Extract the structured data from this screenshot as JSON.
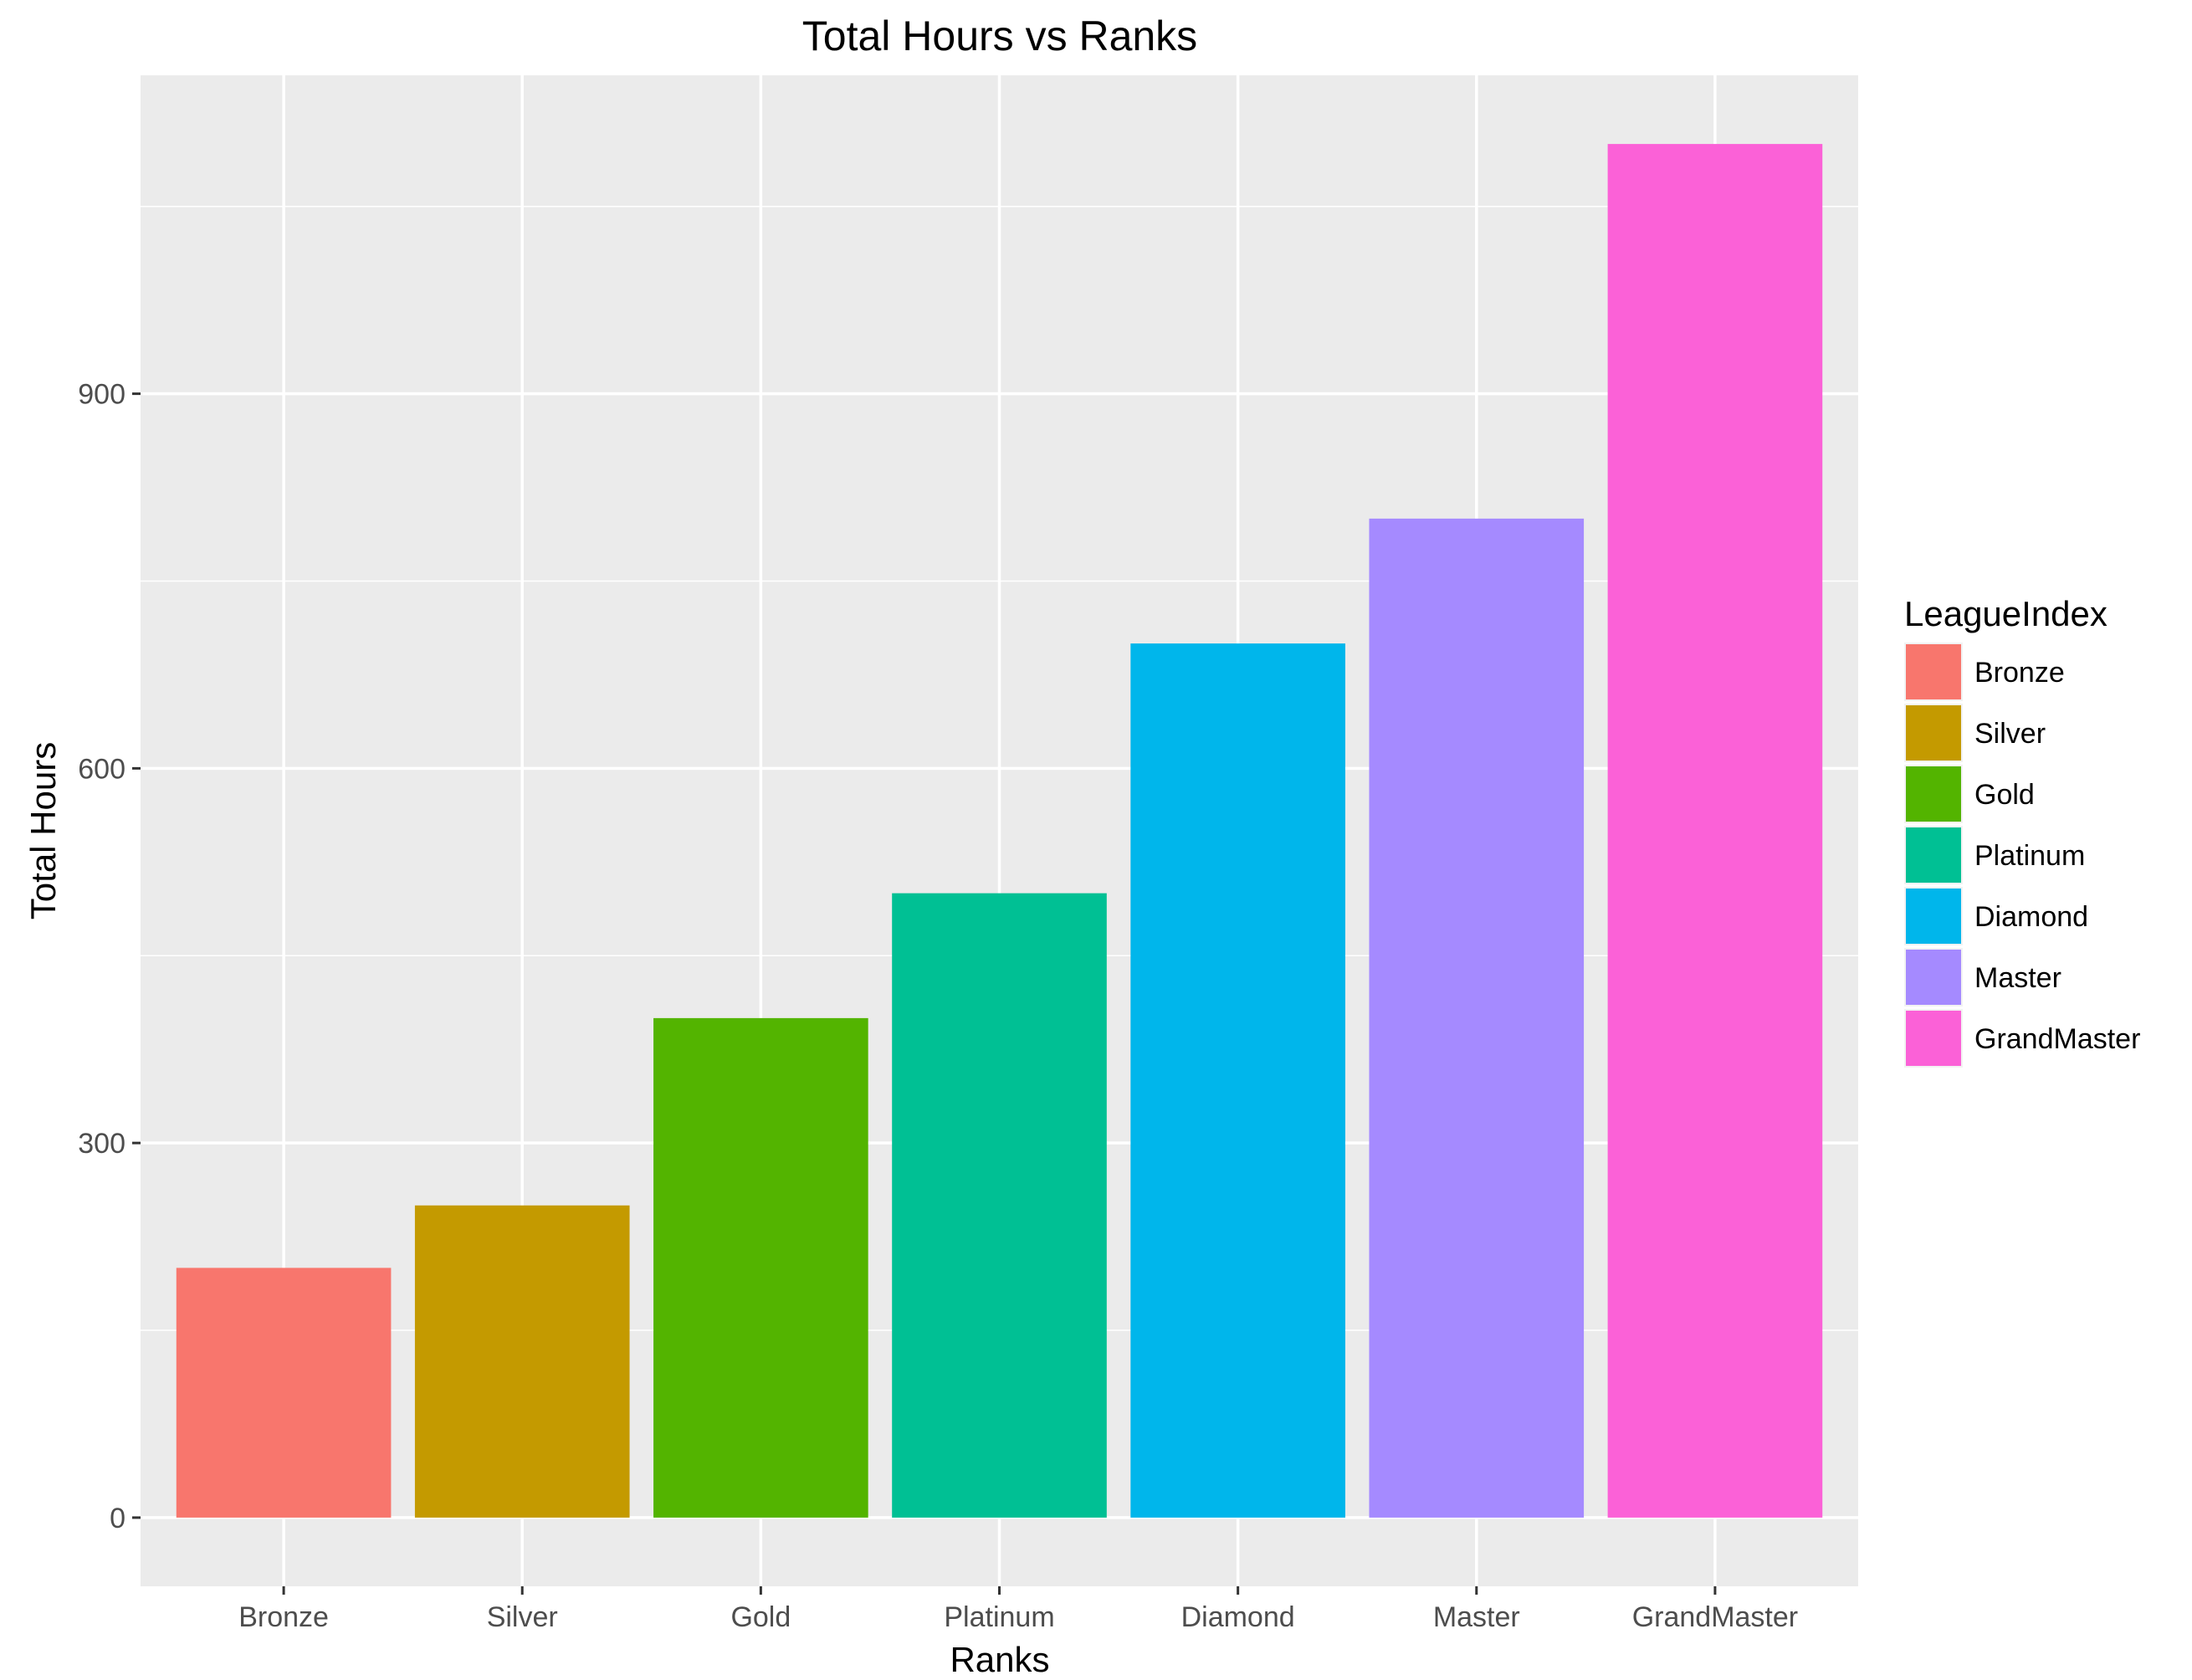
{
  "chart_data": {
    "type": "bar",
    "title": "Total Hours vs Ranks",
    "xlabel": "Ranks",
    "ylabel": "Total Hours",
    "categories": [
      "Bronze",
      "Silver",
      "Gold",
      "Platinum",
      "Diamond",
      "Master",
      "GrandMaster"
    ],
    "values": [
      200,
      250,
      400,
      500,
      700,
      800,
      1100
    ],
    "colors": [
      "#F8766D",
      "#C49A00",
      "#53B400",
      "#00C094",
      "#00B6EB",
      "#A58AFF",
      "#FB61D7"
    ],
    "yticks": [
      0,
      300,
      600,
      900
    ],
    "ylim": [
      -55,
      1155
    ],
    "grid": true,
    "panel_background": "#EBEBEB",
    "grid_color": "#FFFFFF",
    "legend": {
      "title": "LeagueIndex",
      "position": "right",
      "items": [
        "Bronze",
        "Silver",
        "Gold",
        "Platinum",
        "Diamond",
        "Master",
        "GrandMaster"
      ]
    }
  }
}
